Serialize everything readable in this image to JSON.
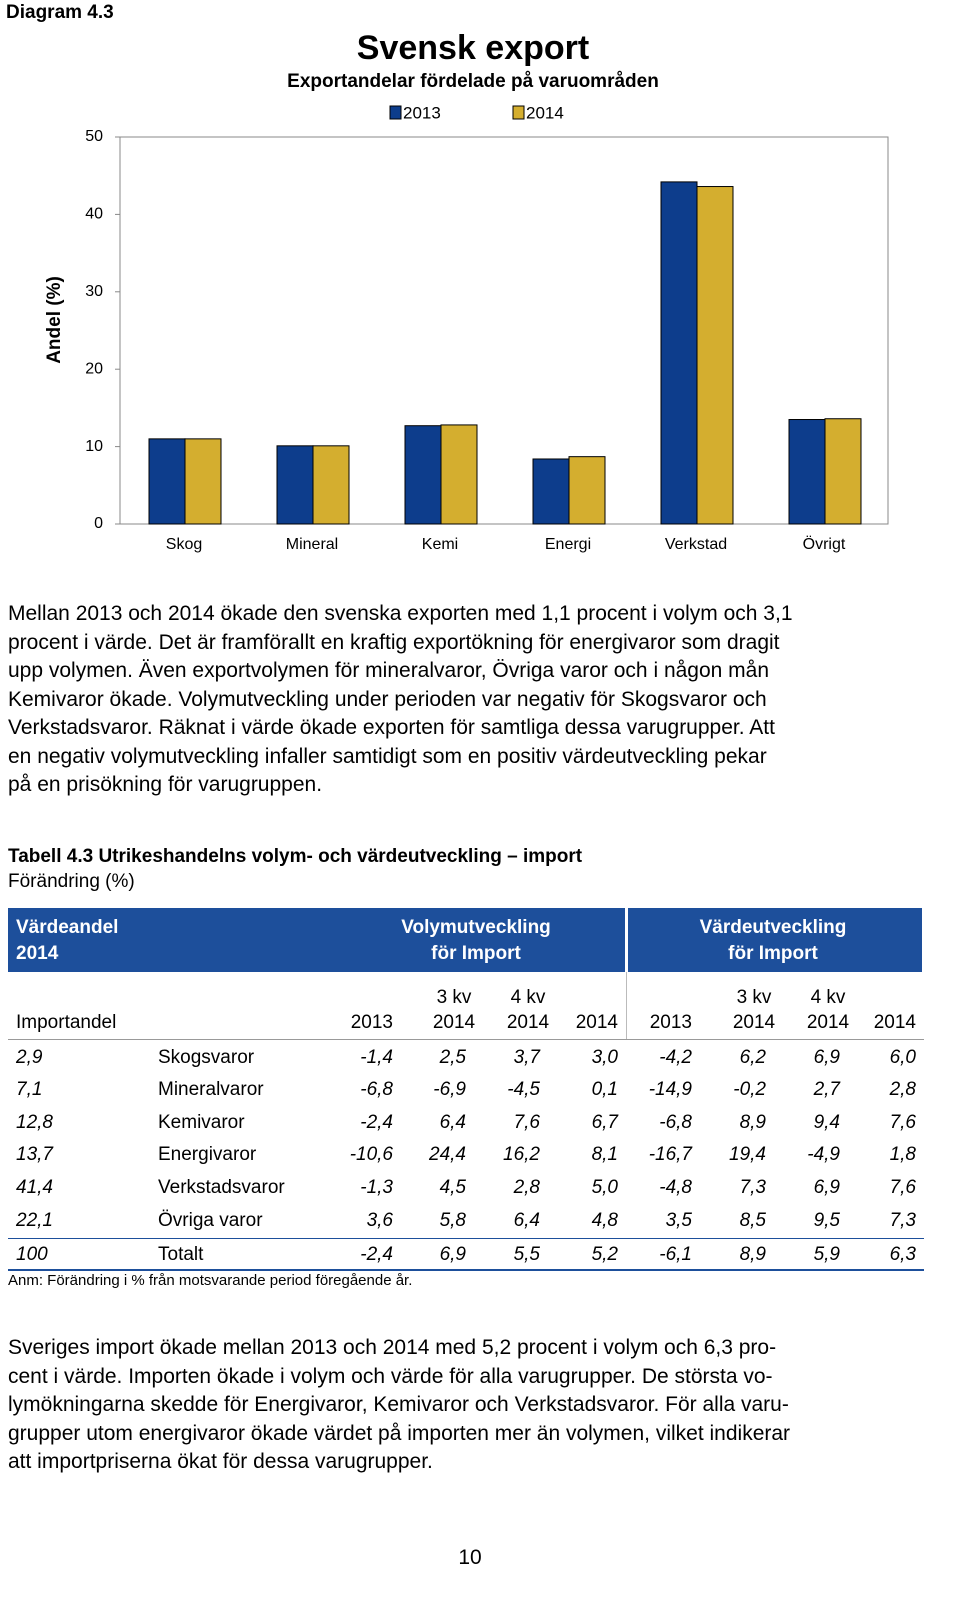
{
  "header": {
    "label": "Diagram 4.3"
  },
  "chart_data": {
    "type": "bar",
    "title": "Svensk export",
    "subtitle": "Exportandelar fördelade på varuområden",
    "ylabel": "Andel (%)",
    "categories": [
      "Skog",
      "Mineral",
      "Kemi",
      "Energi",
      "Verkstad",
      "Övrigt"
    ],
    "series": [
      {
        "name": "2013",
        "color": "#0d3d8c",
        "values": [
          11.0,
          10.1,
          12.7,
          8.4,
          44.2,
          13.5
        ]
      },
      {
        "name": "2014",
        "color": "#d4ae2f",
        "values": [
          11.0,
          10.1,
          12.8,
          8.7,
          43.6,
          13.6
        ]
      }
    ],
    "ylim": [
      0,
      50
    ],
    "yticks": [
      0,
      10,
      20,
      30,
      40,
      50
    ],
    "grid": false,
    "legend": "top"
  },
  "paragraph_1": {
    "lines": [
      "Mellan 2013 och 2014 ökade den svenska exporten med 1,1 procent i volym och 3,1",
      "procent i värde. Det är framförallt en kraftig exportökning för energivaror som dragit",
      "upp volymen. Även exportvolymen för mineralvaror, Övriga varor och i någon mån",
      "Kemivaror ökade. Volymutveckling under perioden var negativ för Skogsvaror och",
      "Verkstadsvaror. Räknat i värde ökade exporten för samtliga dessa varugrupper. Att",
      "en negativ volymutveckling infaller samtidigt som en positiv värdeutveckling pekar",
      "på en prisökning för varugruppen."
    ]
  },
  "table": {
    "title": "Tabell 4.3 Utrikeshandelns volym- och värdeutveckling – import",
    "subtitle": "Förändring (%)",
    "group_headers": [
      [
        "Värdeandel",
        "2014"
      ],
      [
        "Volymutveckling",
        "för Import"
      ],
      [
        "Värdeutveckling",
        "för Import"
      ]
    ],
    "share_header": "Importandel",
    "volume_headers": [
      [
        "2013"
      ],
      [
        "3 kv",
        "2014"
      ],
      [
        "4 kv",
        "2014"
      ],
      [
        "2014"
      ]
    ],
    "value_headers": [
      [
        "2013"
      ],
      [
        "3 kv",
        "2014"
      ],
      [
        "4 kv",
        "2014"
      ],
      [
        "2014"
      ]
    ],
    "rows": [
      {
        "share": "2,9",
        "name": "Skogsvaror",
        "volume": [
          "-1,4",
          "2,5",
          "3,7",
          "3,0"
        ],
        "value": [
          "-4,2",
          "6,2",
          "6,9",
          "6,0"
        ]
      },
      {
        "share": "7,1",
        "name": "Mineralvaror",
        "volume": [
          "-6,8",
          "-6,9",
          "-4,5",
          "0,1"
        ],
        "value": [
          "-14,9",
          "-0,2",
          "2,7",
          "2,8"
        ]
      },
      {
        "share": "12,8",
        "name": "Kemivaror",
        "volume": [
          "-2,4",
          "6,4",
          "7,6",
          "6,7"
        ],
        "value": [
          "-6,8",
          "8,9",
          "9,4",
          "7,6"
        ]
      },
      {
        "share": "13,7",
        "name": "Energivaror",
        "volume": [
          "-10,6",
          "24,4",
          "16,2",
          "8,1"
        ],
        "value": [
          "-16,7",
          "19,4",
          "-4,9",
          "1,8"
        ]
      },
      {
        "share": "41,4",
        "name": "Verkstadsvaror",
        "volume": [
          "-1,3",
          "4,5",
          "2,8",
          "5,0"
        ],
        "value": [
          "-4,8",
          "7,3",
          "6,9",
          "7,6"
        ]
      },
      {
        "share": "22,1",
        "name": "Övriga varor",
        "volume": [
          "3,6",
          "5,8",
          "6,4",
          "4,8"
        ],
        "value": [
          "3,5",
          "8,5",
          "9,5",
          "7,3"
        ]
      }
    ],
    "total": {
      "share": "100",
      "name": "Totalt",
      "volume": [
        "-2,4",
        "6,9",
        "5,5",
        "5,2"
      ],
      "value": [
        "-6,1",
        "8,9",
        "5,9",
        "6,3"
      ]
    },
    "note": "Anm: Förändring i % från motsvarande period föregående år."
  },
  "paragraph_2": {
    "lines": [
      "Sveriges import ökade mellan 2013 och 2014 med 5,2 procent i volym och 6,3 pro-",
      "cent i värde. Importen ökade i volym och värde för alla varugrupper. De största vo-",
      "lymökningarna skedde för Energivaror, Kemivaror och Verkstadsvaror. För alla varu-",
      "grupper utom energivaror ökade värdet på importen mer än volymen, vilket indikerar",
      "att importpriserna ökat för dessa varugrupper."
    ]
  },
  "page_number": "10"
}
